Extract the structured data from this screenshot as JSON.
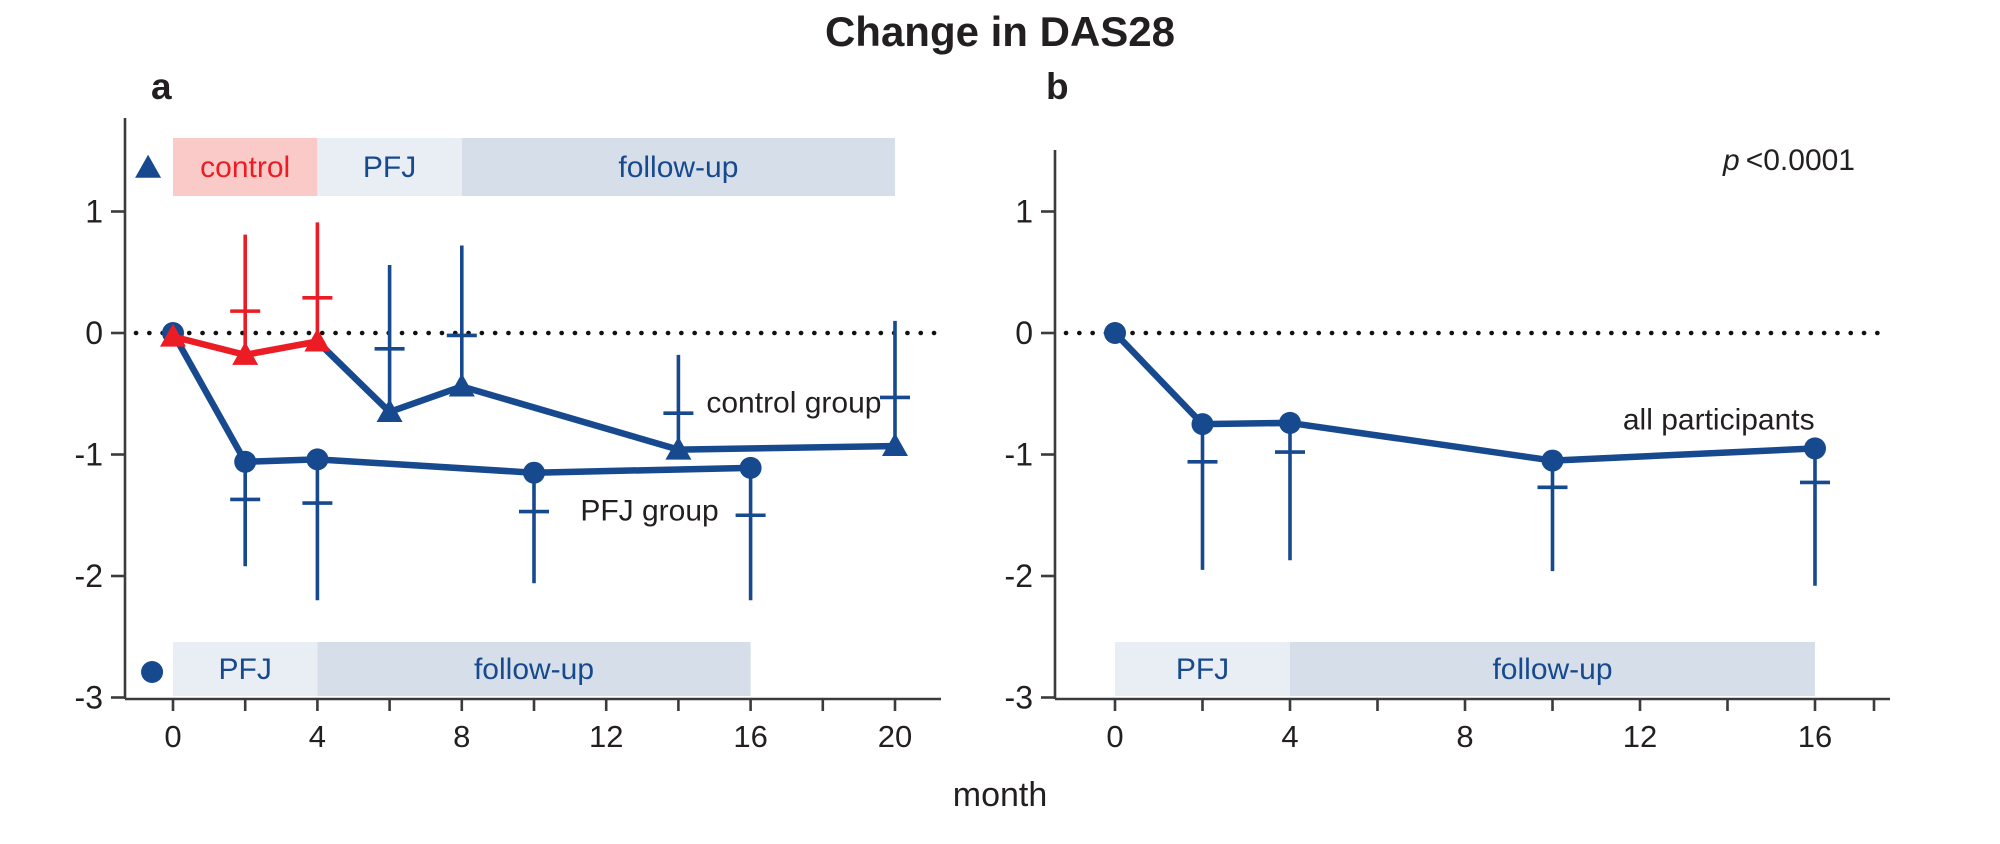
{
  "title": "Change in DAS28",
  "x_axis_title": "month",
  "panels": [
    {
      "label": "a"
    },
    {
      "label": "b"
    }
  ],
  "colors": {
    "navy": "#17498E",
    "red": "#EC1C24",
    "pink_band": "#FACAC8",
    "light_band": "#E9EEF5",
    "mid_band": "#D5DEE9",
    "ink": "#231F20",
    "axis": "#3B3B3D"
  },
  "chart_data": [
    {
      "panel": "a",
      "type": "line",
      "xlabel": "month",
      "ylabel": "",
      "xlim": [
        -1.3,
        21.3
      ],
      "ylim": [
        -3,
        1.75
      ],
      "x_ticks": [
        0,
        2,
        4,
        6,
        8,
        10,
        12,
        14,
        16,
        18,
        20
      ],
      "x_tick_labels": [
        "0",
        "4",
        "8",
        "12",
        "16",
        "20"
      ],
      "x_tick_label_values": [
        0,
        4,
        8,
        12,
        16,
        20
      ],
      "y_ticks": [
        "1",
        "0",
        "-1",
        "-2",
        "-3"
      ],
      "y_tick_values": [
        1,
        0,
        -1,
        -2,
        -3
      ],
      "zero_reference_line": 0,
      "grid": false,
      "top_bands": [
        {
          "label": "control",
          "x0": 0,
          "x1": 4,
          "bg": "pink_band",
          "fg": "red"
        },
        {
          "label": "PFJ",
          "x0": 4,
          "x1": 8,
          "bg": "light_band",
          "fg": "navy"
        },
        {
          "label": "follow-up",
          "x0": 8,
          "x1": 20,
          "bg": "mid_band",
          "fg": "navy"
        }
      ],
      "bottom_bands": [
        {
          "label": "PFJ",
          "x0": 0,
          "x1": 4,
          "bg": "light_band",
          "fg": "navy"
        },
        {
          "label": "follow-up",
          "x0": 4,
          "x1": 16,
          "bg": "mid_band",
          "fg": "navy"
        }
      ],
      "series": [
        {
          "name": "PFJ group",
          "marker": "circle",
          "color": "navy",
          "whisker_dir": "down",
          "points": [
            {
              "month": 0,
              "value": 0.0
            },
            {
              "month": 2,
              "value": -1.06,
              "whisker_end": -1.92,
              "whisker_cap": -1.37
            },
            {
              "month": 4,
              "value": -1.04,
              "whisker_end": -2.2,
              "whisker_cap": -1.4
            },
            {
              "month": 10,
              "value": -1.15,
              "whisker_end": -2.06,
              "whisker_cap": -1.47
            },
            {
              "month": 16,
              "value": -1.11,
              "whisker_end": -2.2,
              "whisker_cap": -1.5
            }
          ]
        },
        {
          "name": "control group (PFJ and follow-up period)",
          "marker": "triangle",
          "color": "navy",
          "whisker_dir": "up",
          "points": [
            {
              "month": 4,
              "value": -0.07,
              "marker": false
            },
            {
              "month": 6,
              "value": -0.65,
              "whisker_end": 0.56,
              "whisker_cap": -0.13
            },
            {
              "month": 8,
              "value": -0.44,
              "whisker_end": 0.72,
              "whisker_cap": -0.02
            },
            {
              "month": 14,
              "value": -0.96,
              "whisker_end": -0.18,
              "whisker_cap": -0.66
            },
            {
              "month": 20,
              "value": -0.93,
              "whisker_end": 0.1,
              "whisker_cap": -0.53
            }
          ]
        },
        {
          "name": "control group (control period)",
          "marker": "triangle",
          "color": "red",
          "whisker_dir": "up",
          "points": [
            {
              "month": 0,
              "value": -0.03
            },
            {
              "month": 2,
              "value": -0.18,
              "whisker_end": 0.81,
              "whisker_cap": 0.18
            },
            {
              "month": 4,
              "value": -0.07,
              "whisker_end": 0.91,
              "whisker_cap": 0.29
            }
          ]
        }
      ],
      "annotations": [
        {
          "text": "control group",
          "month": 17.2,
          "value": -0.57
        },
        {
          "text": "PFJ group",
          "month": 13.2,
          "value": -1.46
        }
      ],
      "legend": [
        {
          "marker": "triangle",
          "series": "control group",
          "month": -0.69,
          "value": 1.36
        },
        {
          "marker": "circle",
          "series": "PFJ group",
          "month": -0.58,
          "value": -2.79
        }
      ]
    },
    {
      "panel": "b",
      "type": "line",
      "p_label": "p",
      "p_value": "<0.0001",
      "xlabel": "month",
      "ylabel": "",
      "xlim": [
        -1.4,
        17.7
      ],
      "ylim": [
        -3,
        1.5
      ],
      "x_ticks": [
        0,
        2,
        4,
        6,
        8,
        10,
        12,
        14,
        16
      ],
      "x_tick_labels": [
        "0",
        "4",
        "8",
        "12",
        "16"
      ],
      "x_tick_label_values": [
        0,
        4,
        8,
        12,
        16
      ],
      "y_ticks": [
        "1",
        "0",
        "-1",
        "-2",
        "-3"
      ],
      "y_tick_values": [
        1,
        0,
        -1,
        -2,
        -3
      ],
      "zero_reference_line": 0,
      "grid": false,
      "top_bands": [],
      "bottom_bands": [
        {
          "label": "PFJ",
          "x0": 0,
          "x1": 4,
          "bg": "light_band",
          "fg": "navy"
        },
        {
          "label": "follow-up",
          "x0": 4,
          "x1": 16,
          "bg": "mid_band",
          "fg": "navy"
        }
      ],
      "series": [
        {
          "name": "all participants",
          "marker": "circle",
          "color": "navy",
          "whisker_dir": "down",
          "points": [
            {
              "month": 0,
              "value": 0.0
            },
            {
              "month": 2,
              "value": -0.75,
              "whisker_end": -1.95,
              "whisker_cap": -1.06
            },
            {
              "month": 4,
              "value": -0.74,
              "whisker_end": -1.87,
              "whisker_cap": -0.98
            },
            {
              "month": 10,
              "value": -1.05,
              "whisker_end": -1.96,
              "whisker_cap": -1.27
            },
            {
              "month": 16,
              "value": -0.95,
              "whisker_end": -2.08,
              "whisker_cap": -1.23
            }
          ]
        }
      ],
      "annotations": [
        {
          "text": "all participants",
          "month": 13.8,
          "value": -0.71
        }
      ],
      "legend": []
    }
  ]
}
